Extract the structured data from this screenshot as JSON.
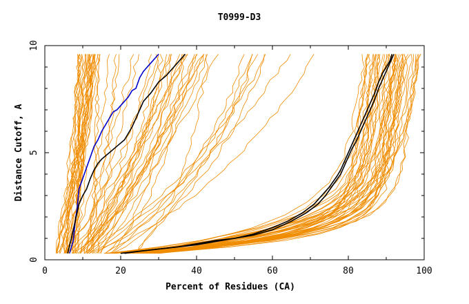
{
  "chart_data": {
    "type": "line",
    "title": "T0999-D3",
    "xlabel": "Percent of Residues (CA)",
    "ylabel": "Distance Cutoff, A",
    "xlim": [
      0,
      100
    ],
    "ylim": [
      0,
      10
    ],
    "xticks": [
      0,
      20,
      40,
      60,
      80,
      100
    ],
    "yticks": [
      0,
      5,
      10
    ],
    "grid": false,
    "legend": "none",
    "colors": {
      "background_models": "#f08c00",
      "highlight_blue": "#0000cc",
      "highlight_black": "#000000",
      "axes": "#000000"
    },
    "series": [
      {
        "color": "#0000cc",
        "x": [
          6.5,
          7.5,
          8,
          8.5,
          9,
          10,
          11,
          12,
          13,
          14,
          15,
          16,
          17,
          18,
          19,
          20,
          22,
          23,
          24,
          25,
          26,
          28,
          30
        ],
        "y": [
          0.3,
          0.9,
          1.8,
          2.4,
          3.3,
          3.8,
          4.3,
          4.8,
          5.3,
          5.6,
          6.0,
          6.3,
          6.6,
          6.9,
          7.0,
          7.2,
          7.6,
          7.9,
          8.0,
          8.5,
          8.8,
          9.2,
          9.6
        ]
      },
      {
        "color": "#000000",
        "x": [
          6,
          7,
          8,
          9,
          10,
          11,
          12,
          13,
          14,
          15,
          17,
          19,
          21,
          23,
          24,
          25,
          26,
          28,
          30,
          32,
          34,
          37
        ],
        "y": [
          0.3,
          1.0,
          1.8,
          2.6,
          3.0,
          3.3,
          3.8,
          4.2,
          4.5,
          4.7,
          5.0,
          5.3,
          5.6,
          6.2,
          6.6,
          7.0,
          7.4,
          7.8,
          8.3,
          8.6,
          9.0,
          9.6
        ]
      },
      {
        "color": "#000000",
        "x": [
          21,
          25,
          30,
          35,
          40,
          45,
          50,
          55,
          60,
          64,
          68,
          71,
          73,
          75,
          77,
          78,
          79,
          80,
          81,
          82,
          83,
          84,
          85,
          86,
          87,
          88,
          89,
          90,
          91,
          91.5
        ],
        "y": [
          0.3,
          0.4,
          0.5,
          0.6,
          0.75,
          0.9,
          1.0,
          1.2,
          1.5,
          1.8,
          2.2,
          2.6,
          3.0,
          3.4,
          3.9,
          4.2,
          4.6,
          5.0,
          5.4,
          5.8,
          6.2,
          6.6,
          7.0,
          7.4,
          7.8,
          8.3,
          8.7,
          9.0,
          9.3,
          9.6
        ]
      },
      {
        "color": "#000000",
        "x": [
          20,
          25,
          30,
          35,
          40,
          45,
          50,
          55,
          60,
          65,
          69,
          72,
          74,
          76,
          78,
          79,
          80,
          81,
          82,
          83,
          84,
          85,
          86,
          87,
          88,
          89,
          90,
          91,
          92
        ],
        "y": [
          0.3,
          0.4,
          0.5,
          0.6,
          0.7,
          0.85,
          1.0,
          1.15,
          1.4,
          1.8,
          2.2,
          2.6,
          3.0,
          3.5,
          4.0,
          4.4,
          4.8,
          5.2,
          5.5,
          5.9,
          6.3,
          6.7,
          7.1,
          7.5,
          8.0,
          8.4,
          8.8,
          9.2,
          9.6
        ]
      }
    ]
  }
}
